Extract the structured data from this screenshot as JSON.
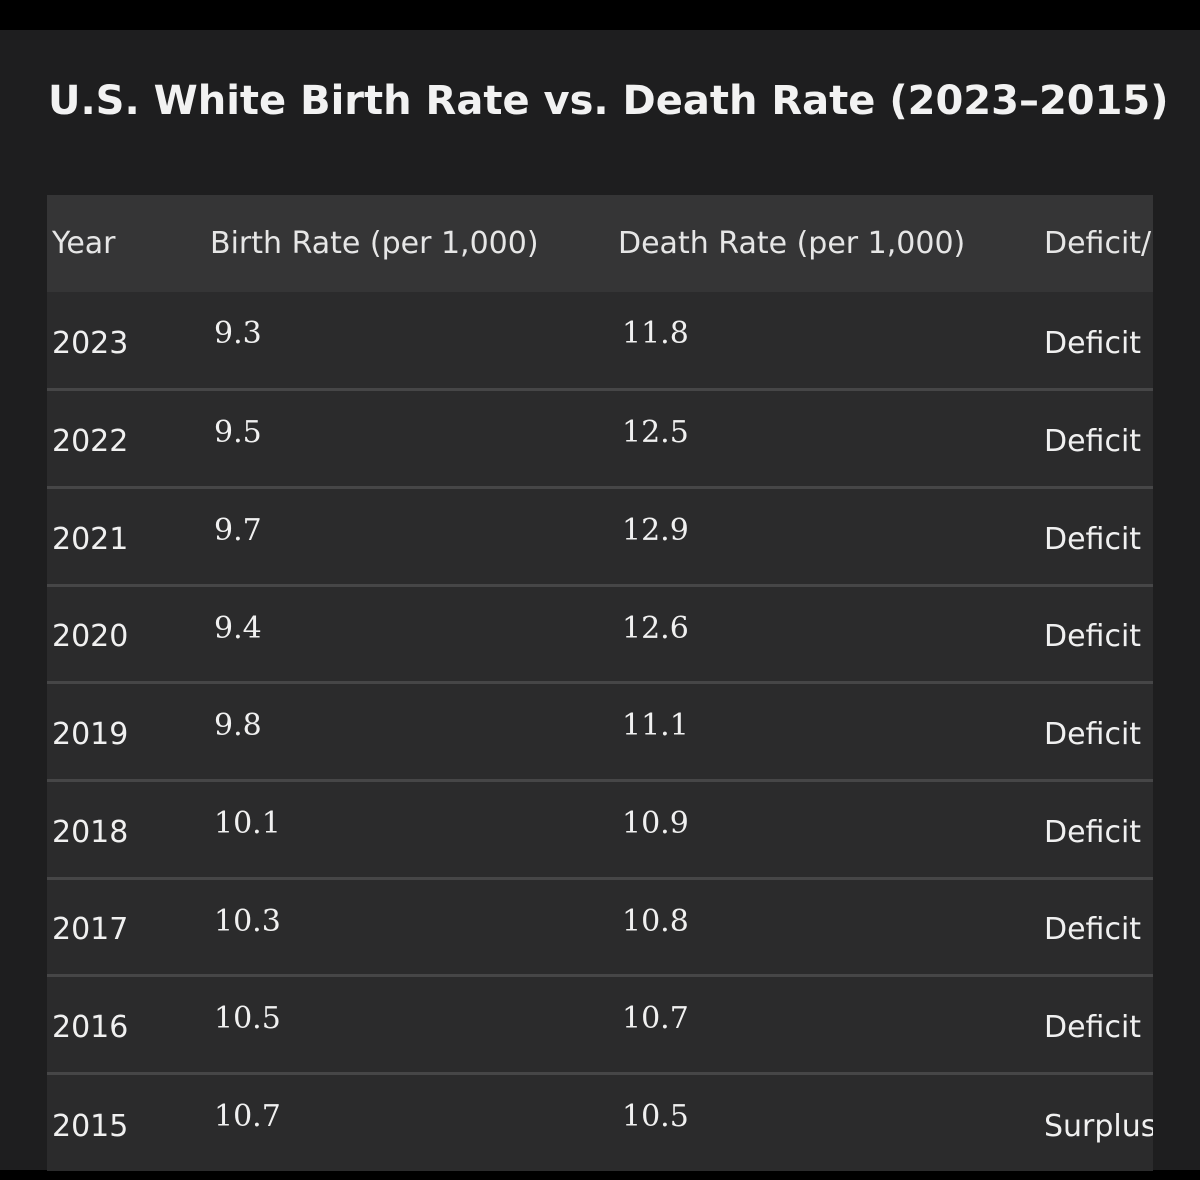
{
  "chart_data": {
    "type": "table",
    "title": "U.S. White Birth Rate vs. Death Rate (2023–2015)",
    "columns": [
      "Year",
      "Birth Rate (per 1,000)",
      "Death Rate (per 1,000)",
      "Deficit/Surplus"
    ],
    "rows": [
      {
        "year": "2023",
        "birth": "9.3",
        "death": "11.8",
        "status": "Deficit"
      },
      {
        "year": "2022",
        "birth": "9.5",
        "death": "12.5",
        "status": "Deficit"
      },
      {
        "year": "2021",
        "birth": "9.7",
        "death": "12.9",
        "status": "Deficit"
      },
      {
        "year": "2020",
        "birth": "9.4",
        "death": "12.6",
        "status": "Deficit"
      },
      {
        "year": "2019",
        "birth": "9.8",
        "death": "11.1",
        "status": "Deficit"
      },
      {
        "year": "2018",
        "birth": "10.1",
        "death": "10.9",
        "status": "Deficit"
      },
      {
        "year": "2017",
        "birth": "10.3",
        "death": "10.8",
        "status": "Deficit"
      },
      {
        "year": "2016",
        "birth": "10.5",
        "death": "10.7",
        "status": "Deficit"
      },
      {
        "year": "2015",
        "birth": "10.7",
        "death": "10.5",
        "status": "Surplus"
      }
    ]
  }
}
